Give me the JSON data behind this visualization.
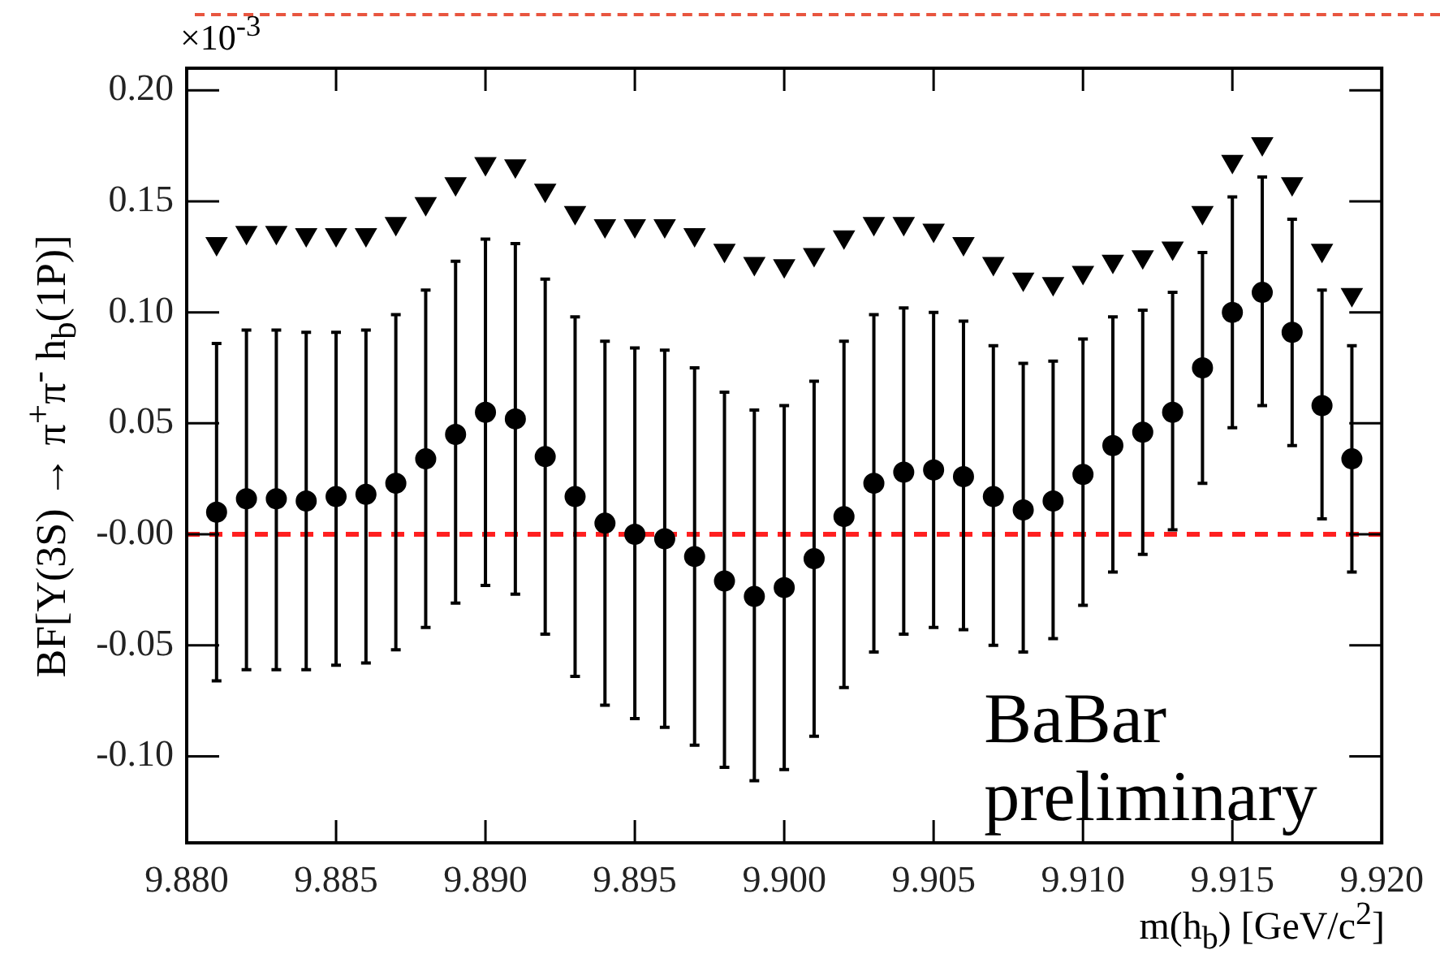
{
  "chart_data": {
    "type": "scatter",
    "xlabel": "m(h$_{b}$) [GeV/c$^{2}$]",
    "ylabel": "BF[Υ(3S) → π$^{+}$π$^{-}$ h$_{b}$(1P)]",
    "annotations": [
      "×10$^{-3}$",
      "BaBar preliminary"
    ],
    "x": [
      9.881,
      9.882,
      9.883,
      9.884,
      9.885,
      9.886,
      9.887,
      9.888,
      9.889,
      9.89,
      9.891,
      9.892,
      9.893,
      9.894,
      9.895,
      9.896,
      9.897,
      9.898,
      9.899,
      9.9,
      9.901,
      9.902,
      9.903,
      9.904,
      9.905,
      9.906,
      9.907,
      9.908,
      9.909,
      9.91,
      9.911,
      9.912,
      9.913,
      9.914,
      9.915,
      9.916,
      9.917,
      9.918,
      9.919
    ],
    "series": [
      {
        "marker": "circle",
        "color": "#000000",
        "values": [
          0.01,
          0.016,
          0.016,
          0.015,
          0.017,
          0.018,
          0.023,
          0.034,
          0.045,
          0.055,
          0.052,
          0.035,
          0.017,
          0.005,
          0.0,
          -0.002,
          -0.01,
          -0.021,
          -0.028,
          -0.024,
          -0.011,
          0.008,
          0.023,
          0.028,
          0.029,
          0.026,
          0.017,
          0.011,
          0.015,
          0.027,
          0.04,
          0.046,
          0.055,
          0.075,
          0.1,
          0.109,
          0.091,
          0.058,
          0.034
        ],
        "errors": [
          [
            -0.066,
            0.086
          ],
          [
            -0.061,
            0.092
          ],
          [
            -0.061,
            0.092
          ],
          [
            -0.061,
            0.091
          ],
          [
            -0.059,
            0.091
          ],
          [
            -0.058,
            0.092
          ],
          [
            -0.052,
            0.099
          ],
          [
            -0.042,
            0.11
          ],
          [
            -0.031,
            0.123
          ],
          [
            -0.023,
            0.133
          ],
          [
            -0.027,
            0.131
          ],
          [
            -0.045,
            0.115
          ],
          [
            -0.064,
            0.098
          ],
          [
            -0.077,
            0.087
          ],
          [
            -0.083,
            0.084
          ],
          [
            -0.087,
            0.083
          ],
          [
            -0.095,
            0.075
          ],
          [
            -0.105,
            0.064
          ],
          [
            -0.111,
            0.056
          ],
          [
            -0.106,
            0.058
          ],
          [
            -0.091,
            0.069
          ],
          [
            -0.069,
            0.087
          ],
          [
            -0.053,
            0.099
          ],
          [
            -0.045,
            0.102
          ],
          [
            -0.042,
            0.1
          ],
          [
            -0.043,
            0.096
          ],
          [
            -0.05,
            0.085
          ],
          [
            -0.053,
            0.077
          ],
          [
            -0.047,
            0.078
          ],
          [
            -0.032,
            0.088
          ],
          [
            -0.017,
            0.098
          ],
          [
            -0.009,
            0.101
          ],
          [
            0.002,
            0.109
          ],
          [
            0.023,
            0.127
          ],
          [
            0.048,
            0.152
          ],
          [
            0.058,
            0.161
          ],
          [
            0.04,
            0.142
          ],
          [
            0.007,
            0.11
          ],
          [
            -0.017,
            0.085
          ]
        ]
      },
      {
        "marker": "triangle",
        "color": "#000000",
        "values": [
          0.131,
          0.136,
          0.136,
          0.135,
          0.135,
          0.135,
          0.14,
          0.149,
          0.158,
          0.167,
          0.166,
          0.155,
          0.145,
          0.139,
          0.139,
          0.139,
          0.135,
          0.128,
          0.122,
          0.121,
          0.126,
          0.134,
          0.14,
          0.14,
          0.137,
          0.131,
          0.122,
          0.115,
          0.113,
          0.118,
          0.123,
          0.125,
          0.129,
          0.145,
          0.168,
          0.176,
          0.158,
          0.128,
          0.108
        ]
      }
    ],
    "xlim": [
      9.88,
      9.92
    ],
    "xticks": [
      {
        "value": 9.88,
        "label": "9.880"
      },
      {
        "value": 9.885,
        "label": "9.885"
      },
      {
        "value": 9.89,
        "label": "9.890"
      },
      {
        "value": 9.895,
        "label": "9.895"
      },
      {
        "value": 9.9,
        "label": "9.900"
      },
      {
        "value": 9.905,
        "label": "9.905"
      },
      {
        "value": 9.91,
        "label": "9.910"
      },
      {
        "value": 9.915,
        "label": "9.915"
      },
      {
        "value": 9.92,
        "label": "9.920"
      }
    ],
    "ylim": [
      -0.139,
      0.21
    ],
    "yticks": [
      {
        "value": -0.1,
        "label": "-0.10"
      },
      {
        "value": -0.05,
        "label": "-0.05"
      },
      {
        "value": 0,
        "label": "-0.00"
      },
      {
        "value": 0.05,
        "label": "0.05"
      },
      {
        "value": 0.1,
        "label": "0.10"
      },
      {
        "value": 0.15,
        "label": "0.15"
      },
      {
        "value": 0.2,
        "label": "0.20"
      }
    ],
    "ref_lines": [
      {
        "axis": "y",
        "value": 0,
        "color": "#ff2020",
        "line_style": "dashed"
      }
    ],
    "grid": false,
    "legend": false
  }
}
